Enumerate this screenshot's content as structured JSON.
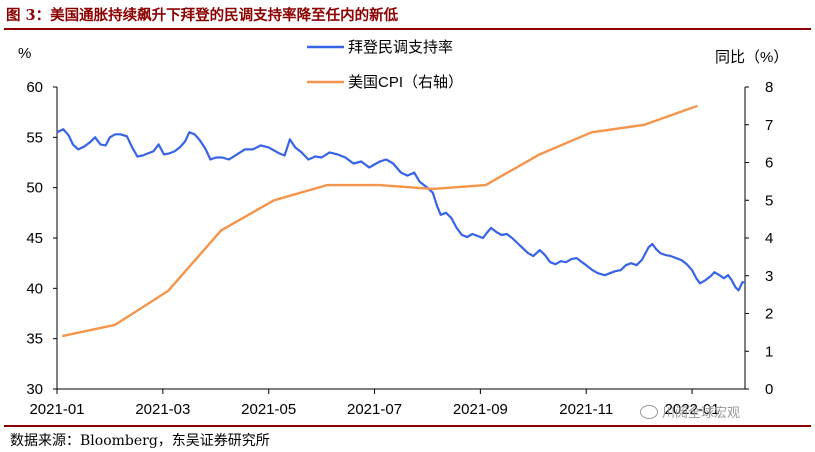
{
  "title": "图 3：美国通胀持续飙升下拜登的民调支持率降至任内的新低",
  "source": "数据来源：Bloomberg，东吴证券研究所",
  "watermark": "川阅全球宏观",
  "colors": {
    "approval": "#3763E6",
    "cpi": "#F4954B",
    "title": "#8B0000"
  },
  "chart_data": {
    "type": "line",
    "y_left_label": "%",
    "y_right_label": "同比（%）",
    "y_left_lim": [
      30,
      60
    ],
    "y_left_ticks": [
      "30",
      "35",
      "40",
      "45",
      "50",
      "55",
      "60"
    ],
    "y_right_lim": [
      0,
      8
    ],
    "y_right_ticks": [
      "0",
      "1",
      "2",
      "3",
      "4",
      "5",
      "6",
      "7",
      "8"
    ],
    "x_range": [
      0,
      13
    ],
    "x_ticks": [
      {
        "label": "2021-01",
        "x": 0
      },
      {
        "label": "2021-03",
        "x": 2
      },
      {
        "label": "2021-05",
        "x": 4
      },
      {
        "label": "2021-07",
        "x": 6
      },
      {
        "label": "2021-09",
        "x": 8
      },
      {
        "label": "2021-11",
        "x": 10
      },
      {
        "label": "2022-01",
        "x": 12
      }
    ],
    "legend": "top-center",
    "series": [
      {
        "name": "拜登民调支持率",
        "axis": "left",
        "points": [
          [
            0.0,
            55.5
          ],
          [
            0.12,
            55.8
          ],
          [
            0.22,
            55.2
          ],
          [
            0.3,
            54.3
          ],
          [
            0.4,
            53.8
          ],
          [
            0.52,
            54.1
          ],
          [
            0.62,
            54.5
          ],
          [
            0.72,
            55.0
          ],
          [
            0.82,
            54.3
          ],
          [
            0.92,
            54.2
          ],
          [
            1.0,
            55.0
          ],
          [
            1.1,
            55.3
          ],
          [
            1.2,
            55.3
          ],
          [
            1.32,
            55.1
          ],
          [
            1.42,
            54.0
          ],
          [
            1.52,
            53.1
          ],
          [
            1.62,
            53.2
          ],
          [
            1.72,
            53.4
          ],
          [
            1.82,
            53.6
          ],
          [
            1.92,
            54.3
          ],
          [
            2.02,
            53.3
          ],
          [
            2.12,
            53.4
          ],
          [
            2.22,
            53.6
          ],
          [
            2.32,
            54.0
          ],
          [
            2.42,
            54.6
          ],
          [
            2.5,
            55.5
          ],
          [
            2.6,
            55.3
          ],
          [
            2.7,
            54.7
          ],
          [
            2.8,
            53.9
          ],
          [
            2.9,
            52.8
          ],
          [
            3.0,
            53.0
          ],
          [
            3.12,
            53.0
          ],
          [
            3.25,
            52.8
          ],
          [
            3.4,
            53.3
          ],
          [
            3.55,
            53.8
          ],
          [
            3.7,
            53.8
          ],
          [
            3.85,
            54.2
          ],
          [
            4.0,
            54.0
          ],
          [
            4.1,
            53.7
          ],
          [
            4.2,
            53.4
          ],
          [
            4.3,
            53.2
          ],
          [
            4.4,
            54.8
          ],
          [
            4.5,
            54.0
          ],
          [
            4.62,
            53.5
          ],
          [
            4.75,
            52.8
          ],
          [
            4.88,
            53.1
          ],
          [
            5.0,
            53.0
          ],
          [
            5.15,
            53.5
          ],
          [
            5.3,
            53.3
          ],
          [
            5.45,
            53.0
          ],
          [
            5.6,
            52.4
          ],
          [
            5.75,
            52.6
          ],
          [
            5.9,
            52.0
          ],
          [
            6.0,
            52.3
          ],
          [
            6.1,
            52.6
          ],
          [
            6.22,
            52.8
          ],
          [
            6.35,
            52.4
          ],
          [
            6.5,
            51.5
          ],
          [
            6.62,
            51.2
          ],
          [
            6.75,
            51.5
          ],
          [
            6.85,
            50.6
          ],
          [
            6.95,
            50.2
          ],
          [
            7.0,
            50.0
          ],
          [
            7.1,
            49.5
          ],
          [
            7.18,
            48.2
          ],
          [
            7.25,
            47.3
          ],
          [
            7.35,
            47.5
          ],
          [
            7.45,
            47.0
          ],
          [
            7.55,
            46.0
          ],
          [
            7.65,
            45.3
          ],
          [
            7.75,
            45.1
          ],
          [
            7.85,
            45.4
          ],
          [
            7.95,
            45.2
          ],
          [
            8.05,
            45.0
          ],
          [
            8.12,
            45.5
          ],
          [
            8.2,
            46.0
          ],
          [
            8.3,
            45.6
          ],
          [
            8.4,
            45.3
          ],
          [
            8.5,
            45.4
          ],
          [
            8.6,
            45.0
          ],
          [
            8.7,
            44.5
          ],
          [
            8.8,
            44.0
          ],
          [
            8.9,
            43.5
          ],
          [
            9.0,
            43.2
          ],
          [
            9.12,
            43.8
          ],
          [
            9.22,
            43.3
          ],
          [
            9.32,
            42.6
          ],
          [
            9.42,
            42.4
          ],
          [
            9.52,
            42.7
          ],
          [
            9.62,
            42.6
          ],
          [
            9.72,
            42.9
          ],
          [
            9.82,
            43.0
          ],
          [
            9.92,
            42.6
          ],
          [
            10.0,
            42.3
          ],
          [
            10.12,
            41.8
          ],
          [
            10.22,
            41.5
          ],
          [
            10.35,
            41.3
          ],
          [
            10.45,
            41.5
          ],
          [
            10.55,
            41.7
          ],
          [
            10.65,
            41.8
          ],
          [
            10.75,
            42.3
          ],
          [
            10.85,
            42.5
          ],
          [
            10.95,
            42.3
          ],
          [
            11.05,
            42.8
          ],
          [
            11.12,
            43.5
          ],
          [
            11.18,
            44.1
          ],
          [
            11.25,
            44.4
          ],
          [
            11.32,
            43.9
          ],
          [
            11.4,
            43.5
          ],
          [
            11.5,
            43.3
          ],
          [
            11.6,
            43.2
          ],
          [
            11.7,
            43.0
          ],
          [
            11.8,
            42.8
          ],
          [
            11.9,
            42.4
          ],
          [
            12.0,
            41.8
          ],
          [
            12.08,
            41.0
          ],
          [
            12.15,
            40.5
          ],
          [
            12.25,
            40.8
          ],
          [
            12.35,
            41.2
          ],
          [
            12.42,
            41.6
          ],
          [
            12.52,
            41.3
          ],
          [
            12.6,
            41.0
          ],
          [
            12.68,
            41.3
          ],
          [
            12.75,
            40.8
          ],
          [
            12.82,
            40.1
          ],
          [
            12.88,
            39.8
          ],
          [
            12.95,
            40.6
          ],
          [
            13.0,
            40.6
          ]
        ]
      },
      {
        "name": "美国CPI（右轴）",
        "axis": "right",
        "points": [
          [
            0.1,
            1.4
          ],
          [
            1.1,
            1.7
          ],
          [
            2.1,
            2.6
          ],
          [
            3.1,
            4.2
          ],
          [
            4.1,
            5.0
          ],
          [
            5.1,
            5.4
          ],
          [
            6.1,
            5.4
          ],
          [
            7.1,
            5.3
          ],
          [
            8.1,
            5.4
          ],
          [
            9.1,
            6.2
          ],
          [
            10.1,
            6.8
          ],
          [
            11.1,
            7.0
          ],
          [
            12.1,
            7.5
          ]
        ]
      }
    ]
  }
}
